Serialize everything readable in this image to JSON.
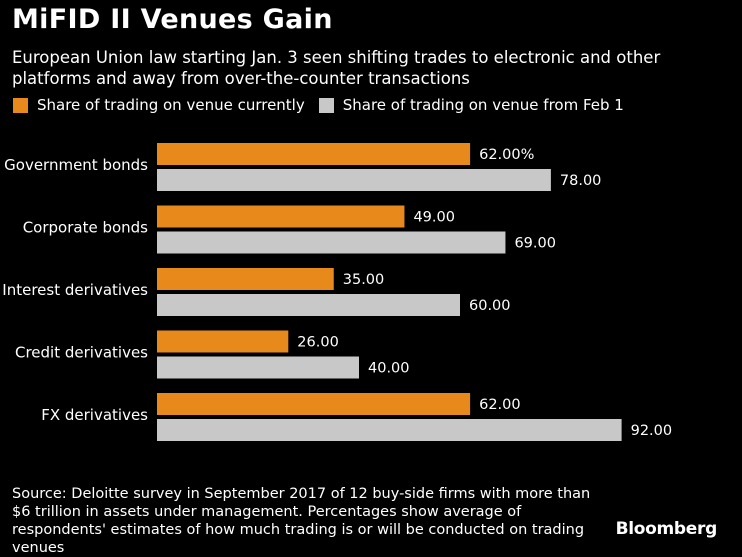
{
  "header": {
    "title": "MiFID II Venues Gain",
    "subtitle": "European Union law starting Jan. 3 seen shifting trades to electronic and other platforms and away from over-the-counter transactions"
  },
  "colors": {
    "current": "#e8891c",
    "feb1": "#c8c8c8",
    "background": "#000000",
    "text": "#ffffff"
  },
  "chart_data": {
    "type": "bar",
    "orientation": "horizontal",
    "title": "MiFID II Venues Gain",
    "xlabel": "",
    "ylabel": "",
    "xlim": [
      0,
      100
    ],
    "grid": false,
    "legend_position": "top-left",
    "categories": [
      "Government bonds",
      "Corporate bonds",
      "Interest derivatives",
      "Credit derivatives",
      "FX derivatives"
    ],
    "series": [
      {
        "name": "Share of trading on venue currently",
        "values": [
          62,
          49,
          35,
          26,
          62
        ],
        "labels": [
          "62.00%",
          "49.00",
          "35.00",
          "26.00",
          "62.00"
        ]
      },
      {
        "name": "Share of trading on venue from Feb 1",
        "values": [
          78,
          69,
          60,
          40,
          92
        ],
        "labels": [
          "78.00",
          "69.00",
          "60.00",
          "40.00",
          "92.00"
        ]
      }
    ]
  },
  "footer": {
    "source": "Source: Deloitte survey in September 2017 of 12 buy-side firms with more than $6 trillion in assets under management. Percentages show average of respondents' estimates of how much trading is or will be conducted on trading venues",
    "brand": "Bloomberg"
  }
}
